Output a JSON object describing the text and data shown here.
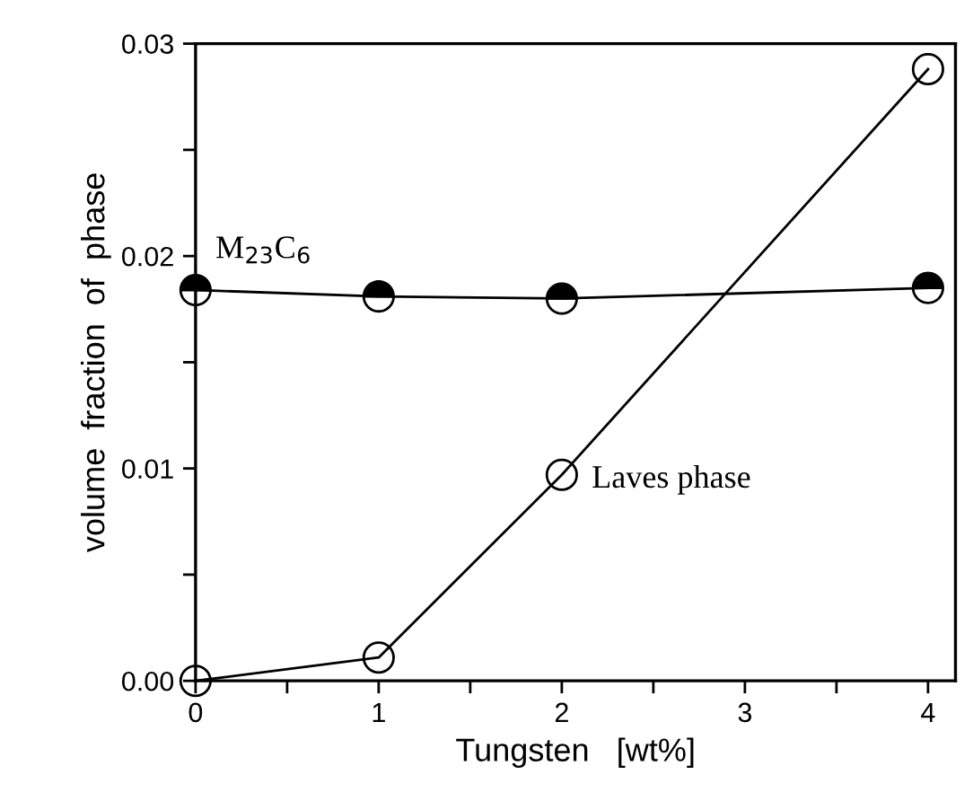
{
  "chart_data": {
    "type": "line",
    "xlabel": "Tungsten   [wt%]",
    "ylabel": "volume  fraction  of  phase",
    "x": [
      0,
      1,
      2,
      4
    ],
    "series": [
      {
        "name": "M$_{23}$C$_{6}$",
        "color": "#000000",
        "values": [
          0.0184,
          0.0181,
          0.018,
          0.0185
        ]
      },
      {
        "name": "Laves phase",
        "color": "#000000",
        "values": [
          0.0,
          0.0011,
          0.0097,
          0.0288
        ]
      }
    ],
    "xlim": [
      0,
      4.15
    ],
    "ylim": [
      0,
      0.03
    ],
    "xticks": [
      0,
      {
        "value": 0.5,
        "label": null
      },
      1,
      {
        "value": 1.5,
        "label": null
      },
      2,
      {
        "value": 2.5,
        "label": null
      },
      3,
      {
        "value": 3.5,
        "label": null
      },
      4
    ],
    "yticks": [
      {
        "value": 0,
        "label": "0.00"
      },
      {
        "value": 0.005,
        "label": null
      },
      {
        "value": 0.01,
        "label": "0.01"
      },
      {
        "value": 0.015,
        "label": null
      },
      {
        "value": 0.02,
        "label": "0.02"
      },
      {
        "value": 0.025,
        "label": null
      },
      {
        "value": 0.03,
        "label": "0.03"
      }
    ],
    "marker": "circle",
    "line_style": "solid",
    "grid": false,
    "legend": false
  }
}
